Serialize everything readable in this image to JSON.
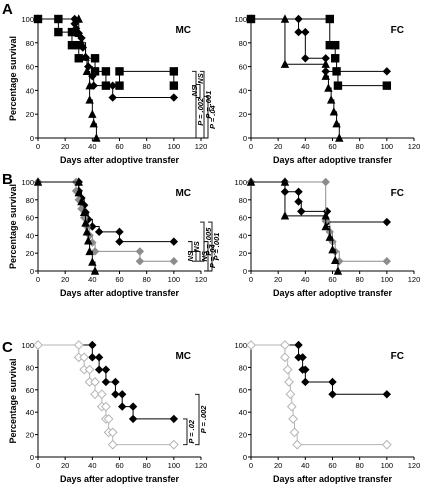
{
  "panel_letters": [
    "A",
    "B",
    "C"
  ],
  "colors": {
    "black": "#000000",
    "gray": "#8c8c8c",
    "light": "#b4b4b4"
  },
  "chart_data": [
    {
      "type": "line",
      "panel": "A",
      "subtitle": "MC",
      "xlabel": "Days after adoptive transfer",
      "ylabel": "Percentage survival",
      "xlim": [
        0,
        120
      ],
      "ylim": [
        0,
        100
      ],
      "xticks": [
        0,
        20,
        40,
        60,
        80,
        100,
        120
      ],
      "yticks": [
        0,
        20,
        40,
        60,
        80,
        100
      ],
      "series": [
        {
          "marker": "square",
          "color": "black",
          "points": [
            [
              0,
              100
            ],
            [
              15,
              100
            ],
            [
              15,
              89
            ],
            [
              25,
              89
            ],
            [
              25,
              78
            ],
            [
              30,
              78
            ],
            [
              30,
              67
            ],
            [
              42,
              67
            ],
            [
              42,
              56
            ],
            [
              50,
              56
            ],
            [
              50,
              44
            ],
            [
              60,
              44
            ],
            [
              60,
              56
            ],
            [
              100,
              56
            ],
            [
              100,
              44
            ]
          ]
        },
        {
          "marker": "diamond",
          "color": "black",
          "points": [
            [
              0,
              100
            ],
            [
              27,
              100
            ],
            [
              27,
              96
            ],
            [
              28,
              92
            ],
            [
              30,
              88
            ],
            [
              32,
              84
            ],
            [
              33,
              76
            ],
            [
              35,
              68
            ],
            [
              37,
              60
            ],
            [
              40,
              52
            ],
            [
              41,
              44
            ],
            [
              55,
              44
            ],
            [
              55,
              34
            ],
            [
              100,
              34
            ]
          ]
        },
        {
          "marker": "triangle",
          "color": "black",
          "points": [
            [
              0,
              100
            ],
            [
              30,
              100
            ],
            [
              30,
              88
            ],
            [
              32,
              80
            ],
            [
              35,
              68
            ],
            [
              36,
              56
            ],
            [
              38,
              44
            ],
            [
              38,
              32
            ],
            [
              40,
              20
            ],
            [
              41,
              12
            ],
            [
              43,
              0
            ]
          ]
        }
      ],
      "annotations": [
        {
          "text": "NS"
        },
        {
          "text": "P = .04"
        }
      ]
    },
    {
      "type": "line",
      "panel": "A",
      "subtitle": "FC",
      "xlabel": "Days after adoptive transfer",
      "ylabel": "",
      "xlim": [
        0,
        120
      ],
      "ylim": [
        0,
        100
      ],
      "xticks": [
        0,
        20,
        40,
        60,
        80,
        100,
        120
      ],
      "yticks": [
        0,
        20,
        40,
        60,
        80,
        100
      ],
      "series": [
        {
          "marker": "square",
          "color": "black",
          "points": [
            [
              0,
              100
            ],
            [
              58,
              100
            ],
            [
              58,
              78
            ],
            [
              62,
              78
            ],
            [
              62,
              67
            ],
            [
              63,
              56
            ],
            [
              64,
              44
            ],
            [
              100,
              44
            ]
          ]
        },
        {
          "marker": "diamond",
          "color": "black",
          "points": [
            [
              0,
              100
            ],
            [
              35,
              100
            ],
            [
              35,
              89
            ],
            [
              40,
              89
            ],
            [
              40,
              67
            ],
            [
              55,
              67
            ],
            [
              55,
              56
            ],
            [
              100,
              56
            ]
          ]
        },
        {
          "marker": "triangle",
          "color": "black",
          "points": [
            [
              0,
              100
            ],
            [
              25,
              100
            ],
            [
              25,
              62
            ],
            [
              55,
              62
            ],
            [
              55,
              52
            ],
            [
              57,
              42
            ],
            [
              59,
              32
            ],
            [
              61,
              22
            ],
            [
              63,
              12
            ],
            [
              65,
              0
            ]
          ]
        }
      ],
      "annotations": [
        {
          "text": "NS"
        },
        {
          "text": "P = .002"
        },
        {
          "text": "P = .001"
        }
      ]
    },
    {
      "type": "line",
      "panel": "B",
      "subtitle": "MC",
      "xlabel": "Days after adoptive transfer",
      "ylabel": "Percentage survival",
      "xlim": [
        0,
        120
      ],
      "ylim": [
        0,
        100
      ],
      "xticks": [
        0,
        20,
        40,
        60,
        80,
        100,
        120
      ],
      "yticks": [
        0,
        20,
        40,
        60,
        80,
        100
      ],
      "series": [
        {
          "marker": "diamond",
          "color": "black",
          "points": [
            [
              0,
              100
            ],
            [
              30,
              100
            ],
            [
              30,
              90
            ],
            [
              32,
              82
            ],
            [
              34,
              74
            ],
            [
              35,
              66
            ],
            [
              37,
              58
            ],
            [
              40,
              50
            ],
            [
              45,
              44
            ],
            [
              60,
              44
            ],
            [
              60,
              33
            ],
            [
              100,
              33
            ]
          ]
        },
        {
          "marker": "diamond",
          "color": "gray",
          "points": [
            [
              0,
              100
            ],
            [
              28,
              100
            ],
            [
              28,
              90
            ],
            [
              30,
              80
            ],
            [
              32,
              70
            ],
            [
              34,
              60
            ],
            [
              36,
              50
            ],
            [
              38,
              40
            ],
            [
              40,
              32
            ],
            [
              42,
              22
            ],
            [
              75,
              22
            ],
            [
              75,
              11
            ],
            [
              100,
              11
            ]
          ]
        },
        {
          "marker": "triangle",
          "color": "black",
          "points": [
            [
              0,
              100
            ],
            [
              30,
              100
            ],
            [
              30,
              88
            ],
            [
              32,
              78
            ],
            [
              34,
              66
            ],
            [
              35,
              54
            ],
            [
              36,
              44
            ],
            [
              37,
              34
            ],
            [
              38,
              22
            ],
            [
              40,
              10
            ],
            [
              42,
              0
            ]
          ]
        }
      ],
      "annotations": [
        {
          "text": "NS"
        },
        {
          "text": "NS"
        },
        {
          "text": "P = .04"
        }
      ]
    },
    {
      "type": "line",
      "panel": "B",
      "subtitle": "FC",
      "xlabel": "Days after adoptive transfer",
      "ylabel": "",
      "xlim": [
        0,
        120
      ],
      "ylim": [
        0,
        100
      ],
      "xticks": [
        0,
        20,
        40,
        60,
        80,
        100,
        120
      ],
      "yticks": [
        0,
        20,
        40,
        60,
        80,
        100
      ],
      "series": [
        {
          "marker": "diamond",
          "color": "black",
          "points": [
            [
              0,
              100
            ],
            [
              25,
              100
            ],
            [
              25,
              89
            ],
            [
              35,
              89
            ],
            [
              35,
              78
            ],
            [
              37,
              67
            ],
            [
              56,
              67
            ],
            [
              56,
              55
            ],
            [
              100,
              55
            ]
          ]
        },
        {
          "marker": "diamond",
          "color": "gray",
          "points": [
            [
              0,
              100
            ],
            [
              55,
              100
            ],
            [
              55,
              56
            ],
            [
              58,
              44
            ],
            [
              60,
              33
            ],
            [
              62,
              22
            ],
            [
              65,
              11
            ],
            [
              100,
              11
            ]
          ]
        },
        {
          "marker": "triangle",
          "color": "black",
          "points": [
            [
              0,
              100
            ],
            [
              25,
              100
            ],
            [
              25,
              62
            ],
            [
              55,
              62
            ],
            [
              55,
              50
            ],
            [
              58,
              38
            ],
            [
              60,
              24
            ],
            [
              62,
              12
            ],
            [
              64,
              0
            ]
          ]
        }
      ],
      "annotations": [
        {
          "text": "NS"
        },
        {
          "text": "P = .005"
        },
        {
          "text": "P = .001"
        }
      ]
    },
    {
      "type": "line",
      "panel": "C",
      "subtitle": "MC",
      "xlabel": "Days after adoptive transfer",
      "ylabel": "Percentage survival",
      "xlim": [
        0,
        120
      ],
      "ylim": [
        0,
        100
      ],
      "xticks": [
        0,
        20,
        40,
        60,
        80,
        100,
        120
      ],
      "yticks": [
        0,
        20,
        40,
        60,
        80,
        100
      ],
      "series": [
        {
          "marker": "diamond",
          "color": "black",
          "points": [
            [
              0,
              100
            ],
            [
              40,
              100
            ],
            [
              40,
              89
            ],
            [
              45,
              89
            ],
            [
              45,
              78
            ],
            [
              50,
              78
            ],
            [
              50,
              67
            ],
            [
              57,
              67
            ],
            [
              57,
              56
            ],
            [
              62,
              56
            ],
            [
              62,
              45
            ],
            [
              70,
              45
            ],
            [
              70,
              34
            ],
            [
              100,
              34
            ]
          ]
        },
        {
          "marker": "diamond-open",
          "color": "light",
          "points": [
            [
              0,
              100
            ],
            [
              30,
              100
            ],
            [
              30,
              89
            ],
            [
              34,
              89
            ],
            [
              34,
              78
            ],
            [
              38,
              78
            ],
            [
              38,
              67
            ],
            [
              42,
              67
            ],
            [
              42,
              56
            ],
            [
              47,
              56
            ],
            [
              47,
              45
            ],
            [
              50,
              45
            ],
            [
              50,
              34
            ],
            [
              52,
              34
            ],
            [
              52,
              22
            ],
            [
              55,
              22
            ],
            [
              55,
              11
            ],
            [
              100,
              11
            ]
          ]
        }
      ],
      "annotations": [
        {
          "text": "P = .02"
        }
      ]
    },
    {
      "type": "line",
      "panel": "C",
      "subtitle": "FC",
      "xlabel": "Days after adoptive transfer",
      "ylabel": "",
      "xlim": [
        0,
        120
      ],
      "ylim": [
        0,
        100
      ],
      "xticks": [
        0,
        20,
        40,
        60,
        80,
        100,
        120
      ],
      "yticks": [
        0,
        20,
        40,
        60,
        80,
        100
      ],
      "series": [
        {
          "marker": "diamond",
          "color": "black",
          "points": [
            [
              0,
              100
            ],
            [
              35,
              100
            ],
            [
              35,
              89
            ],
            [
              38,
              89
            ],
            [
              38,
              78
            ],
            [
              40,
              78
            ],
            [
              40,
              67
            ],
            [
              60,
              67
            ],
            [
              60,
              56
            ],
            [
              100,
              56
            ]
          ]
        },
        {
          "marker": "diamond-open",
          "color": "light",
          "points": [
            [
              0,
              100
            ],
            [
              25,
              100
            ],
            [
              25,
              89
            ],
            [
              27,
              78
            ],
            [
              28,
              67
            ],
            [
              29,
              56
            ],
            [
              30,
              45
            ],
            [
              31,
              34
            ],
            [
              32,
              22
            ],
            [
              34,
              11
            ],
            [
              100,
              11
            ]
          ]
        }
      ],
      "annotations": [
        {
          "text": "P = .002"
        }
      ]
    }
  ]
}
